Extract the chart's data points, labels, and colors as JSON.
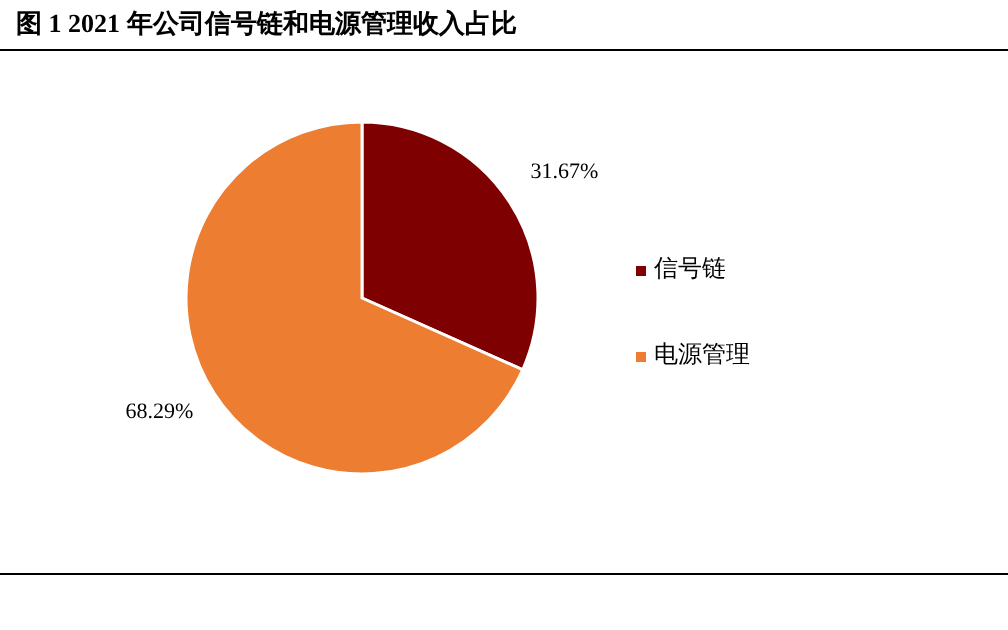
{
  "chart_data": {
    "type": "pie",
    "title": "图 1 2021 年公司信号链和电源管理收入占比",
    "categories": [
      "信号链",
      "电源管理"
    ],
    "values": [
      31.67,
      68.29
    ],
    "colors": [
      "#7f0000",
      "#ed7d31"
    ],
    "value_labels": [
      "31.67%",
      "68.29%"
    ],
    "legend": "right"
  }
}
